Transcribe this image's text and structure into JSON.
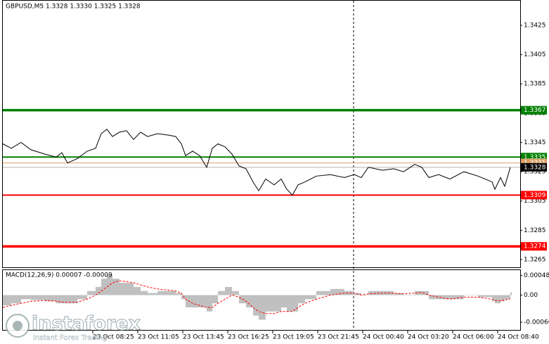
{
  "chart_data": [
    {
      "type": "line",
      "title": "GBPUSD,M5  1.3328 1.3330 1.3325 1.3328",
      "x": [
        0,
        6,
        13,
        20,
        30,
        38,
        42,
        46,
        53,
        60,
        66,
        70,
        74,
        78,
        83,
        88,
        93,
        98,
        103,
        110,
        118,
        123,
        127,
        130,
        135,
        140,
        145,
        149,
        153,
        158,
        163,
        168,
        173,
        178,
        182,
        187,
        193,
        198,
        202,
        206,
        210,
        215,
        223,
        233,
        243,
        250,
        255,
        260,
        270,
        278,
        285,
        293,
        298,
        303,
        310,
        318,
        328,
        338,
        348,
        350,
        354,
        357,
        361
      ],
      "series": [
        {
          "name": "GBPUSD",
          "color": "#000000",
          "values": [
            1.3344,
            1.3341,
            1.3345,
            1.334,
            1.3337,
            1.3335,
            1.3338,
            1.3331,
            1.3334,
            1.3339,
            1.3341,
            1.3351,
            1.3354,
            1.3349,
            1.3352,
            1.3353,
            1.3347,
            1.3352,
            1.3349,
            1.3351,
            1.335,
            1.3349,
            1.3344,
            1.3336,
            1.3339,
            1.3336,
            1.3328,
            1.3341,
            1.3344,
            1.3342,
            1.3337,
            1.3329,
            1.3327,
            1.3318,
            1.3312,
            1.332,
            1.3316,
            1.332,
            1.3313,
            1.3309,
            1.3316,
            1.3318,
            1.3322,
            1.3323,
            1.3321,
            1.3323,
            1.3321,
            1.3328,
            1.3326,
            1.3327,
            1.3325,
            1.333,
            1.3328,
            1.3321,
            1.3323,
            1.332,
            1.3325,
            1.3322,
            1.3318,
            1.3313,
            1.3321,
            1.3315,
            1.3328
          ]
        }
      ],
      "xlim": [
        0,
        368
      ],
      "xticks": [
        {
          "value": 64,
          "label": "23 Oct 08:25"
        },
        {
          "value": 96,
          "label": "23 Oct 11:05"
        },
        {
          "value": 128,
          "label": "23 Oct 13:45"
        },
        {
          "value": 160,
          "label": "23 Oct 16:25"
        },
        {
          "value": 192,
          "label": "23 Oct 19:05"
        },
        {
          "value": 224,
          "label": "23 Oct 21:45"
        },
        {
          "value": 256,
          "label": "24 Oct 00:40"
        },
        {
          "value": 288,
          "label": "24 Oct 03:20"
        },
        {
          "value": 320,
          "label": "24 Oct 06:00"
        },
        {
          "value": 352,
          "label": "24 Oct 08:40"
        }
      ],
      "vlines": [
        249.5
      ],
      "ylim": [
        1.32592,
        1.34423
      ],
      "yticks": [
        1.3425,
        1.3405,
        1.3385,
        1.3365,
        1.3345,
        1.3325,
        1.3305,
        1.3285,
        1.3265
      ],
      "levels": [
        {
          "value": 1.3367,
          "color": "#008000",
          "style": "thick"
        },
        {
          "value": 1.3335,
          "color": "#008000",
          "style": "thin"
        },
        {
          "value": 1.3331,
          "color": "#d9a066",
          "style": "hair"
        },
        {
          "value": 1.3328,
          "color": "#000000",
          "style": "price"
        },
        {
          "value": 1.3309,
          "color": "#ff0000",
          "style": "thin"
        },
        {
          "value": 1.3274,
          "color": "#ff0000",
          "style": "thick"
        }
      ],
      "watermark": "instaforex",
      "watermark_sub": "Instant Forex Trading"
    },
    {
      "type": "macd",
      "title": "MACD(12,26,9) 0.00007 -0.00009",
      "series": [
        {
          "name": "MACD",
          "color": "#c0c0c0",
          "values": [
            -0.00025,
            -0.0002,
            -0.0001,
            -0.00012,
            -0.00015,
            -0.0002,
            -0.0002,
            -0.0002,
            -0.0001,
            0.0001,
            0.0002,
            0.0004,
            0.0005,
            0.0004,
            0.0003,
            0.0003,
            0.0002,
            0.0001,
            5e-05,
            0.0001,
            0.0001,
            5e-05,
            -0.0001,
            -0.0003,
            -0.0003,
            -0.0003,
            -0.0004,
            -0.0002,
            0.0001,
            0.0002,
            0.0001,
            -0.0002,
            -0.0003,
            -0.0005,
            -0.0006,
            -0.0004,
            -0.0004,
            -0.0003,
            -0.0004,
            -0.0004,
            -0.0002,
            -0.0001,
            0.0001,
            0.00015,
            0.0001,
            5e-05,
            0.0,
            0.0001,
            0.0001,
            5e-05,
            0.0,
            0.0001,
            0.0001,
            -0.0001,
            -0.0001,
            -0.0001,
            0.0,
            -5e-05,
            -0.00015,
            -0.0002,
            -0.00015,
            -0.0001,
            7e-05
          ]
        },
        {
          "name": "Signal",
          "color": "#ff0000",
          "values": [
            -0.0003,
            -0.00025,
            -0.0002,
            -0.00015,
            -0.00013,
            -0.00015,
            -0.00017,
            -0.00018,
            -0.00017,
            -0.0001,
            0.0,
            0.0001,
            0.0002,
            0.0003,
            0.00035,
            0.00033,
            0.0003,
            0.00025,
            0.0002,
            0.00015,
            0.00012,
            0.0001,
            5e-05,
            -0.0001,
            -0.0002,
            -0.00025,
            -0.0003,
            -0.0003,
            -0.0002,
            -0.0001,
            0.0,
            -5e-05,
            -0.00015,
            -0.0003,
            -0.0004,
            -0.00045,
            -0.00045,
            -0.0004,
            -0.0004,
            -0.0004,
            -0.0003,
            -0.0002,
            -0.0001,
            0.0,
            5e-05,
            5e-05,
            0.0,
            3e-05,
            5e-05,
            5e-05,
            3e-05,
            5e-05,
            7e-05,
            0.0,
            -5e-05,
            -0.0001,
            -5e-05,
            -5e-05,
            -0.0001,
            -0.00013,
            -0.00014,
            -0.00012,
            -9e-05
          ]
        }
      ],
      "ylim": [
        -0.00085,
        0.00061
      ],
      "yticks": [
        0.00048,
        {
          "value": 0,
          "label": "0.00"
        },
        -0.00066
      ]
    }
  ]
}
